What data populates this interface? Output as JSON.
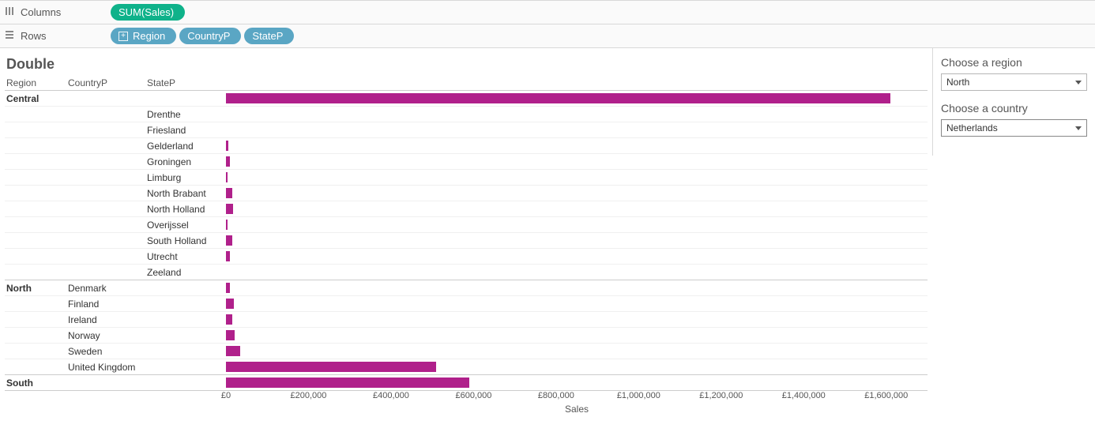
{
  "shelves": {
    "columns": {
      "label": "Columns",
      "pills": [
        {
          "text": "SUM(Sales)",
          "color": "#0fb28a"
        }
      ]
    },
    "rows": {
      "label": "Rows",
      "pills": [
        {
          "text": "Region",
          "color": "#5aa6c4",
          "expandable": true
        },
        {
          "text": "CountryP",
          "color": "#5aa6c4"
        },
        {
          "text": "StateP",
          "color": "#5aa6c4"
        }
      ]
    }
  },
  "viz": {
    "title": "Double",
    "headers": {
      "region": "Region",
      "country": "CountryP",
      "state": "StateP"
    },
    "bar_color": "#b0208b",
    "x_max": 1700000,
    "rows": [
      {
        "region": "Central",
        "country": "",
        "state": "",
        "value": 1610000,
        "group_first": true
      },
      {
        "region": "",
        "country": "",
        "state": "Drenthe",
        "value": 0
      },
      {
        "region": "",
        "country": "",
        "state": "Friesland",
        "value": 0
      },
      {
        "region": "",
        "country": "",
        "state": "Gelderland",
        "value": 6000
      },
      {
        "region": "",
        "country": "",
        "state": "Groningen",
        "value": 9000
      },
      {
        "region": "",
        "country": "",
        "state": "Limburg",
        "value": 4000
      },
      {
        "region": "",
        "country": "",
        "state": "North Brabant",
        "value": 16000
      },
      {
        "region": "",
        "country": "",
        "state": "North Holland",
        "value": 18000
      },
      {
        "region": "",
        "country": "",
        "state": "Overijssel",
        "value": 4000
      },
      {
        "region": "",
        "country": "",
        "state": "South Holland",
        "value": 16000
      },
      {
        "region": "",
        "country": "",
        "state": "Utrecht",
        "value": 10000
      },
      {
        "region": "",
        "country": "",
        "state": "Zeeland",
        "value": 0
      },
      {
        "region": "North",
        "country": "Denmark",
        "state": "",
        "value": 9000,
        "group_first": true
      },
      {
        "region": "",
        "country": "Finland",
        "state": "",
        "value": 20000
      },
      {
        "region": "",
        "country": "Ireland",
        "state": "",
        "value": 16000
      },
      {
        "region": "",
        "country": "Norway",
        "state": "",
        "value": 22000
      },
      {
        "region": "",
        "country": "Sweden",
        "state": "",
        "value": 35000
      },
      {
        "region": "",
        "country": "United Kingdom",
        "state": "",
        "value": 510000
      },
      {
        "region": "South",
        "country": "",
        "state": "",
        "value": 590000,
        "group_first": true
      }
    ],
    "axis": {
      "label": "Sales",
      "ticks": [
        {
          "v": 0,
          "label": "£0"
        },
        {
          "v": 200000,
          "label": "£200,000"
        },
        {
          "v": 400000,
          "label": "£400,000"
        },
        {
          "v": 600000,
          "label": "£600,000"
        },
        {
          "v": 800000,
          "label": "£800,000"
        },
        {
          "v": 1000000,
          "label": "£1,000,000"
        },
        {
          "v": 1200000,
          "label": "£1,200,000"
        },
        {
          "v": 1400000,
          "label": "£1,400,000"
        },
        {
          "v": 1600000,
          "label": "£1,600,000"
        }
      ]
    }
  },
  "side": {
    "params": [
      {
        "label": "Choose a region",
        "value": "North",
        "active": false
      },
      {
        "label": "Choose a country",
        "value": "Netherlands",
        "active": true
      }
    ]
  }
}
